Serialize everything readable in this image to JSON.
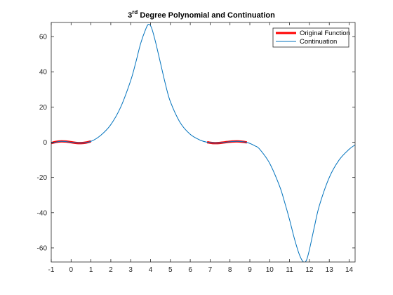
{
  "chart_data": {
    "type": "line",
    "title": {
      "prefix": "3",
      "superscript": "rd",
      "suffix": " Degree Polynomial and Continuation"
    },
    "xlabel": "",
    "ylabel": "",
    "xlim": [
      -1,
      14.3
    ],
    "ylim": [
      -68,
      68
    ],
    "xticks": [
      -1,
      0,
      1,
      2,
      3,
      4,
      5,
      6,
      7,
      8,
      9,
      10,
      11,
      12,
      13,
      14
    ],
    "yticks": [
      -60,
      -40,
      -20,
      0,
      20,
      40,
      60
    ],
    "grid": false,
    "legend_position": "top-right",
    "series": [
      {
        "name": "Original Function",
        "color": "#ff0000",
        "style": "thick",
        "segments": [
          {
            "x": [
              -1,
              -0.75,
              -0.5,
              -0.25,
              0,
              0.25,
              0.5,
              0.75,
              1
            ],
            "y": [
              -0.5,
              0.2,
              0.5,
              0.4,
              0,
              -0.4,
              -0.5,
              -0.2,
              0.5
            ]
          },
          {
            "x": [
              6.85,
              7.1,
              7.35,
              7.6,
              7.85,
              8.1,
              8.35,
              8.6,
              8.85
            ],
            "y": [
              0,
              -0.45,
              -0.5,
              -0.25,
              0.1,
              0.4,
              0.5,
              0.3,
              -0.1
            ]
          }
        ]
      },
      {
        "name": "Continuation",
        "color": "#0072bd",
        "style": "thin",
        "x": [
          -1,
          -0.5,
          0,
          0.5,
          1,
          1.5,
          2,
          2.5,
          3,
          3.25,
          3.5,
          3.75,
          3.9,
          4.05,
          4.25,
          4.5,
          4.75,
          5,
          5.5,
          6,
          6.5,
          6.85,
          7.35,
          7.85,
          8.35,
          8.85,
          9.25,
          9.5,
          10,
          10.5,
          10.75,
          11,
          11.25,
          11.5,
          11.7,
          11.85,
          12,
          12.25,
          12.5,
          13,
          13.5,
          14,
          14.3
        ],
        "y": [
          -0.5,
          0.5,
          0,
          -0.5,
          0.5,
          4,
          10,
          20,
          35,
          45,
          56,
          64,
          67,
          65,
          57,
          45,
          33,
          23,
          11,
          4.5,
          1.2,
          0,
          -0.5,
          0.1,
          0.5,
          -0.1,
          -2,
          -4,
          -12,
          -25,
          -34,
          -44,
          -55,
          -64,
          -68,
          -67,
          -61,
          -48,
          -36,
          -20,
          -10,
          -4,
          -1.5
        ]
      }
    ]
  }
}
